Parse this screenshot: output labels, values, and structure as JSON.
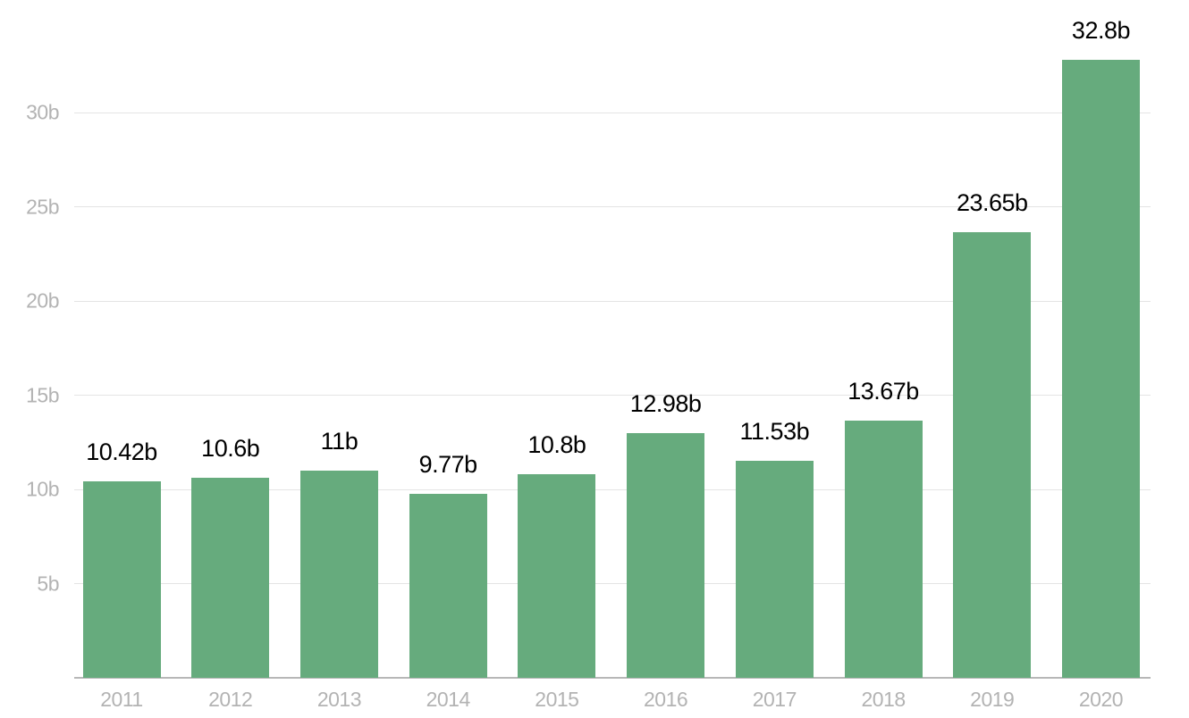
{
  "chart_data": {
    "type": "bar",
    "title": "",
    "xlabel": "",
    "ylabel": "",
    "categories": [
      "2011",
      "2012",
      "2013",
      "2014",
      "2015",
      "2016",
      "2017",
      "2018",
      "2019",
      "2020"
    ],
    "values": [
      10.42,
      10.6,
      11,
      9.77,
      10.8,
      12.98,
      11.53,
      13.67,
      23.65,
      32.8
    ],
    "bar_labels": [
      "10.42b",
      "10.6b",
      "11b",
      "9.77b",
      "10.8b",
      "12.98b",
      "11.53b",
      "13.67b",
      "23.65b",
      "32.8b"
    ],
    "unit": "b",
    "ylim": [
      0,
      33.5
    ],
    "yticks": [
      {
        "value": 5,
        "label": "5b"
      },
      {
        "value": 10,
        "label": "10b"
      },
      {
        "value": 15,
        "label": "15b"
      },
      {
        "value": 20,
        "label": "20b"
      },
      {
        "value": 25,
        "label": "25b"
      },
      {
        "value": 30,
        "label": "30b"
      }
    ],
    "grid": true,
    "legend": false
  },
  "style": {
    "bar_color": "#66ab7d",
    "value_label_color": "#000000",
    "axis_text_color": "#b3b3b3",
    "gridline_color": "#e4e4e4",
    "baseline_color": "#b7b7b7",
    "background_color": "#ffffff"
  }
}
